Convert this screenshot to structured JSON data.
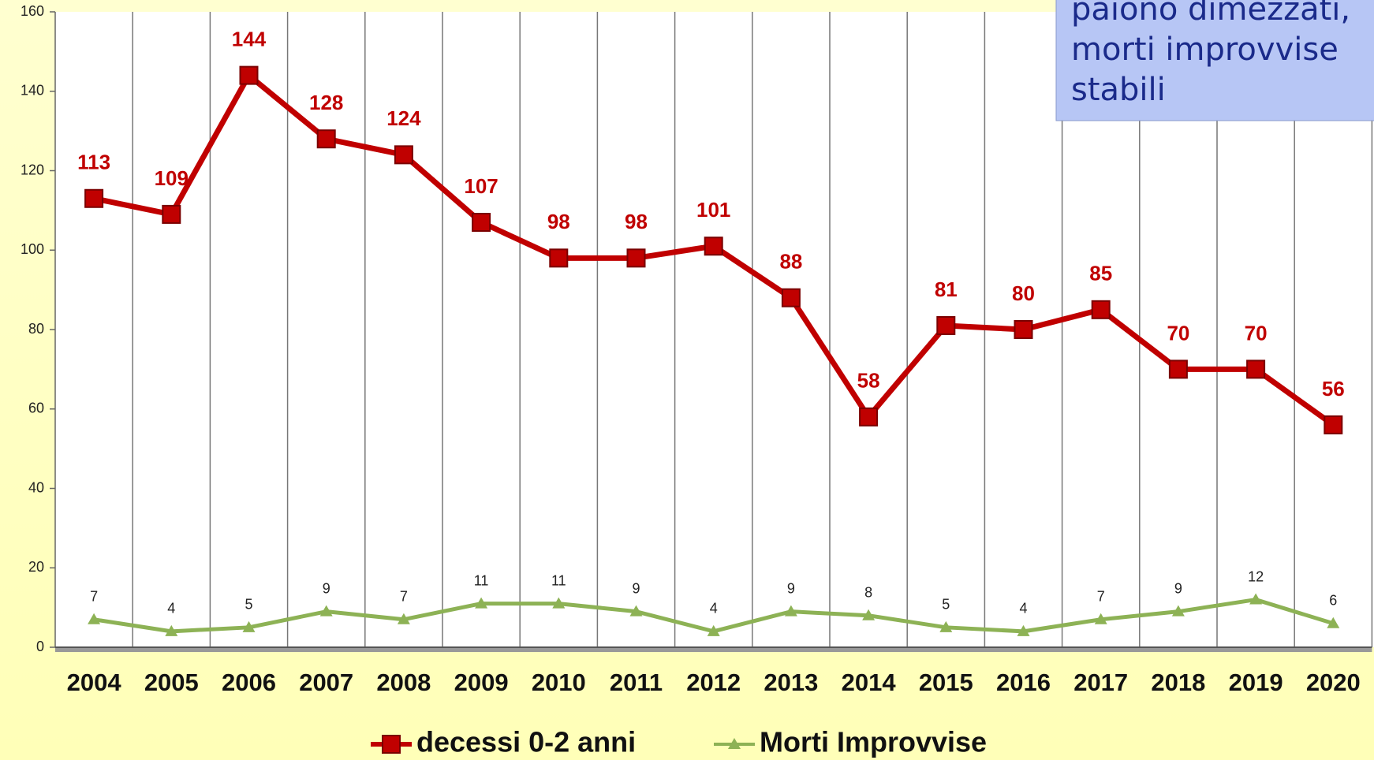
{
  "chart_data": {
    "type": "line",
    "categories": [
      "2004",
      "2005",
      "2006",
      "2007",
      "2008",
      "2009",
      "2010",
      "2011",
      "2012",
      "2013",
      "2014",
      "2015",
      "2016",
      "2017",
      "2018",
      "2019",
      "2020"
    ],
    "series": [
      {
        "name": "decessi 0-2 anni",
        "color": "#c00000",
        "marker": "square",
        "values": [
          113,
          109,
          144,
          128,
          124,
          107,
          98,
          98,
          101,
          88,
          58,
          81,
          80,
          85,
          70,
          70,
          56
        ]
      },
      {
        "name": "Morti Improvvise",
        "color": "#8db255",
        "marker": "triangle",
        "values": [
          7,
          4,
          5,
          9,
          7,
          11,
          11,
          9,
          4,
          9,
          8,
          5,
          4,
          7,
          9,
          12,
          6
        ]
      }
    ],
    "ylim": [
      0,
      160
    ],
    "yticks": [
      0,
      20,
      40,
      60,
      80,
      100,
      120,
      140,
      160
    ],
    "grid": true,
    "legend": "bottom",
    "annotation": [
      "paiono dimezzati,",
      "morti improvvise",
      "stabili"
    ]
  }
}
